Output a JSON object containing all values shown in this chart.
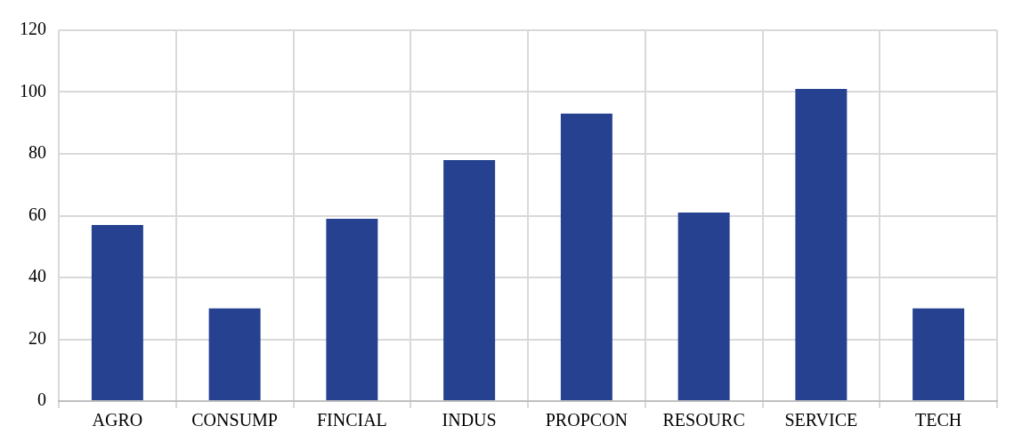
{
  "chart_data": {
    "type": "bar",
    "categories": [
      "AGRO",
      "CONSUMP",
      "FINCIAL",
      "INDUS",
      "PROPCON",
      "RESOURC",
      "SERVICE",
      "TECH"
    ],
    "values": [
      57,
      30,
      59,
      78,
      93,
      61,
      101,
      30
    ],
    "color": "#25418f",
    "ylim": [
      0,
      120
    ],
    "yticks": [
      0,
      20,
      40,
      60,
      80,
      100,
      120
    ],
    "grid": true
  }
}
